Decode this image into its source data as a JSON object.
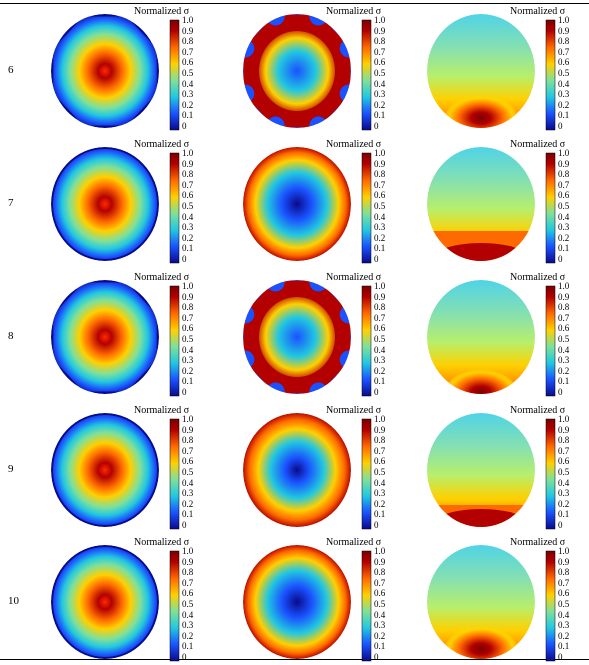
{
  "colorbar": {
    "title": "Normalized σ",
    "ticks": [
      "1.0",
      "0.9",
      "0.8",
      "0.7",
      "0.6",
      "0.5",
      "0.4",
      "0.3",
      "0.2",
      "0.1",
      "0"
    ]
  },
  "rows": [
    {
      "label": "6",
      "maps": [
        "center-peak-octagon",
        "lobed-ring-8",
        "bottom-spot"
      ]
    },
    {
      "label": "7",
      "maps": [
        "center-peak-circle",
        "outer-ring",
        "bottom-band"
      ]
    },
    {
      "label": "8",
      "maps": [
        "center-peak-octagon",
        "lobed-ring-8",
        "bottom-spot-low"
      ]
    },
    {
      "label": "9",
      "maps": [
        "center-peak-circle",
        "outer-ring-strong",
        "bottom-band-thin"
      ]
    },
    {
      "label": "10",
      "maps": [
        "center-peak-circle",
        "outer-ring",
        "bottom-spot"
      ]
    }
  ],
  "colors": {
    "red": "#b30000",
    "orange": "#ff6a00",
    "yellow": "#ffd000",
    "cyan": "#22c8e0",
    "blue": "#1a52ff",
    "navy": "#0a0a8c"
  }
}
